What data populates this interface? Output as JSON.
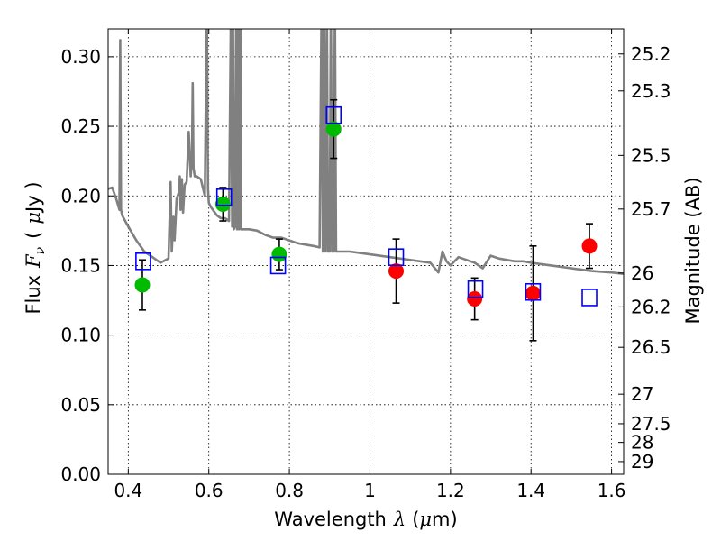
{
  "chart_data": {
    "type": "scatter",
    "xlabel_text": "Wavelength",
    "xlabel_symbol": "λ",
    "xlabel_unit_open": "(",
    "xlabel_unit_mu": "μ",
    "xlabel_unit_rest": "m)",
    "ylabel_text": "Flux",
    "ylabel_symbol": "F",
    "ylabel_sub": "ν",
    "ylabel_paren_open": "(",
    "ylabel_mu": "μ",
    "ylabel_unit_rest": "Jy )",
    "y2label": "Magnitude (AB)",
    "xlim": [
      0.35,
      1.63
    ],
    "ylim": [
      0.0,
      0.32
    ],
    "grid": true,
    "x_ticks": [
      0.4,
      0.6,
      0.8,
      1.0,
      1.2,
      1.4,
      1.6
    ],
    "x_tick_labels": [
      "0.4",
      "0.6",
      "0.8",
      "1",
      "1.2",
      "1.4",
      "1.6"
    ],
    "y_ticks": [
      0.0,
      0.05,
      0.1,
      0.15,
      0.2,
      0.25,
      0.3
    ],
    "y_tick_labels": [
      "0.00",
      "0.05",
      "0.10",
      "0.15",
      "0.20",
      "0.25",
      "0.30"
    ],
    "mag_ticks": [
      {
        "label": "25.2",
        "value": 25.2
      },
      {
        "label": "25.3",
        "value": 25.3
      },
      {
        "label": "25.5",
        "value": 25.5
      },
      {
        "label": "25.7",
        "value": 25.7
      },
      {
        "label": "26",
        "value": 26.0
      },
      {
        "label": "26.2",
        "value": 26.2
      },
      {
        "label": "26.5",
        "value": 26.5
      },
      {
        "label": "27",
        "value": 27.0
      },
      {
        "label": "27.5",
        "value": 27.5
      },
      {
        "label": "28",
        "value": 28.0
      },
      {
        "label": "29",
        "value": 29.0
      }
    ],
    "series": [
      {
        "marker": "circle",
        "color": "#00bb00",
        "points": [
          {
            "x": 0.435,
            "y": 0.136,
            "err": 0.018
          },
          {
            "x": 0.635,
            "y": 0.194,
            "err": 0.012
          },
          {
            "x": 0.775,
            "y": 0.158,
            "err": 0.011
          },
          {
            "x": 0.91,
            "y": 0.248,
            "err": 0.021
          }
        ]
      },
      {
        "marker": "circle",
        "color": "#ff0000",
        "points": [
          {
            "x": 1.065,
            "y": 0.146,
            "err": 0.023
          },
          {
            "x": 1.26,
            "y": 0.126,
            "err": 0.015
          },
          {
            "x": 1.405,
            "y": 0.13,
            "err": 0.034
          },
          {
            "x": 1.545,
            "y": 0.164,
            "err": 0.016
          }
        ]
      },
      {
        "marker": "open-square",
        "color": "#0000ff",
        "points": [
          {
            "x": 0.437,
            "y": 0.153
          },
          {
            "x": 0.638,
            "y": 0.199
          },
          {
            "x": 0.772,
            "y": 0.15
          },
          {
            "x": 0.91,
            "y": 0.258
          },
          {
            "x": 1.065,
            "y": 0.156
          },
          {
            "x": 1.262,
            "y": 0.133
          },
          {
            "x": 1.405,
            "y": 0.131
          },
          {
            "x": 1.545,
            "y": 0.127
          }
        ]
      }
    ],
    "model_sed": {
      "color": "#808080",
      "x": [
        0.35,
        0.36,
        0.37,
        0.378,
        0.38,
        0.382,
        0.385,
        0.4,
        0.42,
        0.44,
        0.46,
        0.48,
        0.5,
        0.505,
        0.508,
        0.512,
        0.515,
        0.52,
        0.525,
        0.528,
        0.53,
        0.533,
        0.536,
        0.54,
        0.545,
        0.55,
        0.555,
        0.558,
        0.56,
        0.562,
        0.565,
        0.57,
        0.58,
        0.59,
        0.595,
        0.598,
        0.6,
        0.605,
        0.61,
        0.62,
        0.63,
        0.64,
        0.65,
        0.655,
        0.658,
        0.66,
        0.662,
        0.665,
        0.668,
        0.67,
        0.672,
        0.675,
        0.678,
        0.68,
        0.685,
        0.7,
        0.72,
        0.74,
        0.76,
        0.78,
        0.8,
        0.82,
        0.84,
        0.86,
        0.875,
        0.88,
        0.883,
        0.886,
        0.89,
        0.893,
        0.896,
        0.9,
        0.903,
        0.906,
        0.91,
        0.913,
        0.916,
        0.92,
        0.95,
        1.0,
        1.05,
        1.1,
        1.15,
        1.17,
        1.18,
        1.19,
        1.2,
        1.22,
        1.24,
        1.26,
        1.28,
        1.3,
        1.32,
        1.34,
        1.36,
        1.38,
        1.4,
        1.45,
        1.5,
        1.55,
        1.6,
        1.63
      ],
      "y": [
        0.205,
        0.206,
        0.198,
        0.19,
        0.312,
        0.19,
        0.186,
        0.178,
        0.168,
        0.16,
        0.156,
        0.152,
        0.155,
        0.21,
        0.16,
        0.185,
        0.168,
        0.198,
        0.202,
        0.214,
        0.19,
        0.212,
        0.188,
        0.208,
        0.21,
        0.246,
        0.214,
        0.228,
        0.281,
        0.22,
        0.214,
        0.214,
        0.212,
        0.2,
        0.34,
        0.205,
        0.195,
        0.192,
        0.19,
        0.186,
        0.184,
        0.184,
        0.182,
        0.34,
        0.178,
        0.34,
        0.176,
        0.178,
        0.34,
        0.176,
        0.34,
        0.176,
        0.34,
        0.176,
        0.176,
        0.176,
        0.175,
        0.172,
        0.17,
        0.17,
        0.168,
        0.166,
        0.165,
        0.164,
        0.163,
        0.34,
        0.16,
        0.34,
        0.16,
        0.34,
        0.16,
        0.16,
        0.34,
        0.16,
        0.16,
        0.34,
        0.16,
        0.16,
        0.16,
        0.158,
        0.156,
        0.154,
        0.152,
        0.145,
        0.16,
        0.153,
        0.15,
        0.156,
        0.154,
        0.152,
        0.148,
        0.157,
        0.155,
        0.154,
        0.153,
        0.153,
        0.152,
        0.15,
        0.148,
        0.146,
        0.145,
        0.144
      ]
    }
  }
}
